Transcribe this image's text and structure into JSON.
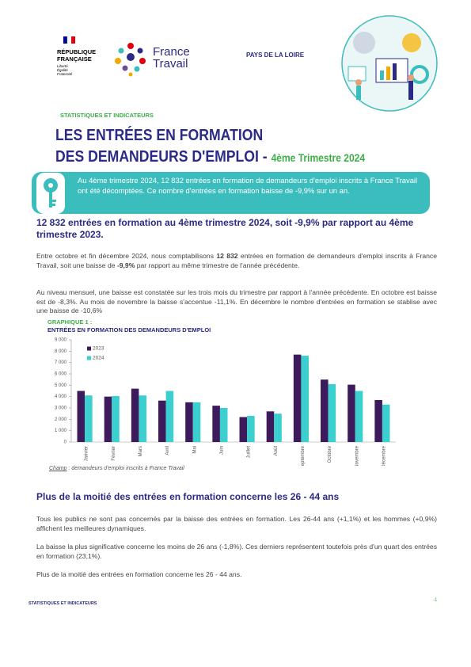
{
  "header": {
    "republic": "RÉPUBLIQUE FRANÇAISE",
    "motto": "Liberté Égalité Fraternité",
    "brand": "France Travail",
    "region": "PAYS DE LA LOIRE",
    "kicker": "STATISTIQUES ET INDICATEURS"
  },
  "title": {
    "line1": "LES ENTRÉES EN FORMATION",
    "line2": "DES DEMANDEURS D'EMPLOI - ",
    "period": "4ème Trimestre 2024"
  },
  "summary": "Au 4ème trimestre 2024, 12 832 entrées en formation de demandeurs d'emploi inscrits à France Travail ont été décomptées. Ce nombre d'entrées en formation baisse de -9,9% sur un an.",
  "section1": {
    "heading": "12 832 entrées en formation au 4ème trimestre 2024, soit -9,9% par rapport au 4ème trimestre 2023.",
    "paragraph1": [
      "Entre octobre et fin décembre 2024, nous comptabilisons ",
      "12 832",
      " entrées en formation de demandeurs d'emploi inscrits à France Travail, soit une baisse de ",
      "-9,9%",
      " par rapport au même trimestre de l'année précédente."
    ],
    "paragraph2": "Au niveau mensuel, une baisse est constatée sur les trois mois du trimestre par rapport à l'année précédente. En octobre est baisse est de -8,3%. Au mois de novembre la baisse s'accentue -11,1%. En décembre le nombre d'entrées en formation se stablise avec une baisse de -10,6%"
  },
  "chart_data": {
    "type": "bar",
    "label": "GRAPHIQUE 1 :",
    "title": "ENTRÉES EN FORMATION DES DEMANDEURS D'EMPLOI",
    "categories": [
      "Janvier",
      "Février",
      "Mars",
      "Avril",
      "Mai",
      "Juin",
      "Juillet",
      "Août",
      "Septembre",
      "Octobre",
      "Novembre",
      "Décembre"
    ],
    "series": [
      {
        "name": "2023",
        "color": "#3d1a5b",
        "values": [
          4500,
          4000,
          4700,
          3650,
          3500,
          3200,
          2200,
          2700,
          7700,
          5500,
          5050,
          3700
        ]
      },
      {
        "name": "2024",
        "color": "#3ccfcf",
        "values": [
          4100,
          4050,
          4100,
          4500,
          3500,
          3000,
          2300,
          2500,
          7600,
          5100,
          4500,
          3300
        ]
      }
    ],
    "ylim": [
      0,
      9000
    ],
    "yticks": [
      0,
      {
        "value": 1000,
        "label": "1 000"
      },
      {
        "value": 2000,
        "label": "2 000"
      },
      {
        "value": 3000,
        "label": "3 000"
      },
      {
        "value": 4000,
        "label": "4 000"
      },
      {
        "value": 5000,
        "label": "5 000"
      },
      {
        "value": 6000,
        "label": "6 000"
      },
      {
        "value": 7000,
        "label": "7 000"
      },
      {
        "value": 8000,
        "label": "8 000"
      },
      {
        "value": 9000,
        "label": "9 000"
      }
    ],
    "grid": false,
    "legend": "top-left",
    "source": [
      "Champ",
      " : demandeurs d'emploi inscrits à France Travail"
    ]
  },
  "section2": {
    "heading": "Plus de la moitié des entrées en formation concerne les 26 - 44 ans",
    "paragraphs": [
      "Tous les publics ne sont pas concernés par la baisse des entrées en formation. Les 26-44 ans (+1,1%) et les hommes (+0,9%) affichent les meilleures dynamiques.",
      "La baisse la plus significative concerne les moins de 26 ans (-1,8%). Ces derniers représentent toutefois près d'un quart des entrées en formation (23,1%).",
      "Plus de la moitié des entrées en formation concerne les 26 - 44 ans."
    ]
  },
  "footer": {
    "label": "STATISTIQUES ET INDICATEURS",
    "page": "-1"
  }
}
